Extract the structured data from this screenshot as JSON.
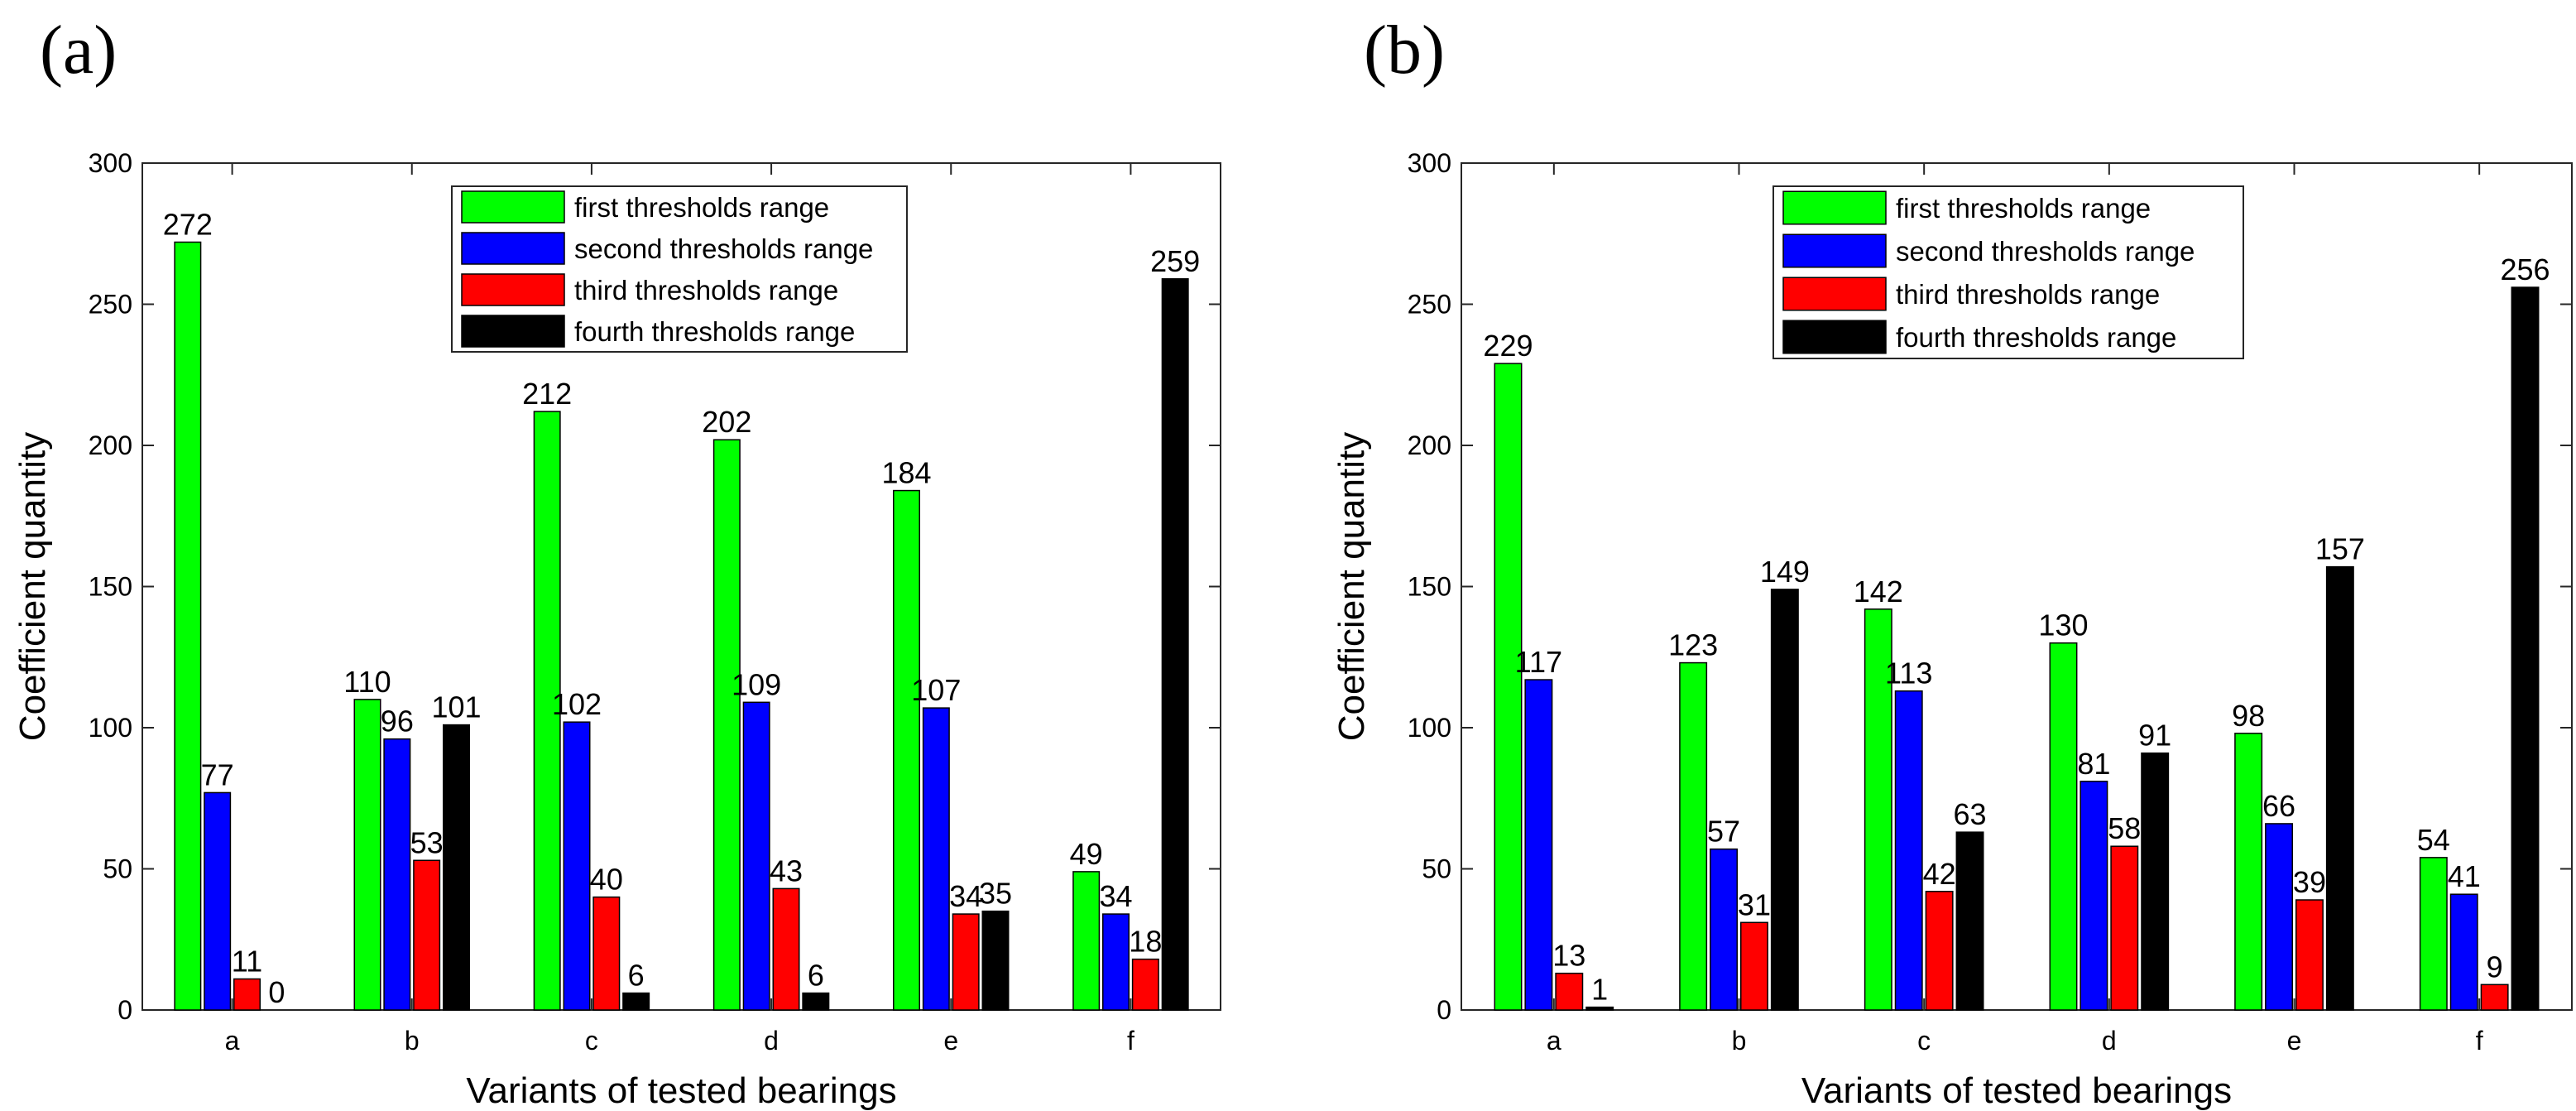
{
  "chart_data": [
    {
      "type": "bar",
      "panel_label": "(a)",
      "title": "",
      "xlabel": "Variants of tested bearings",
      "ylabel": "Coefficient quantity",
      "ylim": [
        0,
        300
      ],
      "yticks": [
        0,
        50,
        100,
        150,
        200,
        250,
        300
      ],
      "grid": false,
      "legend_position": "top-center",
      "categories": [
        "a",
        "b",
        "c",
        "d",
        "e",
        "f"
      ],
      "series": [
        {
          "name": "first thresholds range",
          "color": "#00ff00",
          "values": [
            272,
            110,
            212,
            202,
            184,
            49
          ]
        },
        {
          "name": "second thresholds range",
          "color": "#0000ff",
          "values": [
            77,
            96,
            102,
            109,
            107,
            34
          ]
        },
        {
          "name": "third thresholds range",
          "color": "#ff0000",
          "values": [
            11,
            53,
            40,
            43,
            34,
            18
          ]
        },
        {
          "name": "fourth thresholds range",
          "color": "#000000",
          "values": [
            0,
            101,
            6,
            6,
            35,
            259
          ]
        }
      ]
    },
    {
      "type": "bar",
      "panel_label": "(b)",
      "title": "",
      "xlabel": "Variants of tested bearings",
      "ylabel": "Coefficient quantity",
      "ylim": [
        0,
        300
      ],
      "yticks": [
        0,
        50,
        100,
        150,
        200,
        250,
        300
      ],
      "grid": false,
      "legend_position": "top-center",
      "categories": [
        "a",
        "b",
        "c",
        "d",
        "e",
        "f"
      ],
      "series": [
        {
          "name": "first thresholds range",
          "color": "#00ff00",
          "values": [
            229,
            123,
            142,
            130,
            98,
            54
          ]
        },
        {
          "name": "second thresholds range",
          "color": "#0000ff",
          "values": [
            117,
            57,
            113,
            81,
            66,
            41
          ]
        },
        {
          "name": "third thresholds range",
          "color": "#ff0000",
          "values": [
            13,
            31,
            42,
            58,
            39,
            9
          ]
        },
        {
          "name": "fourth thresholds range",
          "color": "#000000",
          "values": [
            1,
            149,
            63,
            91,
            157,
            256
          ]
        }
      ]
    }
  ]
}
